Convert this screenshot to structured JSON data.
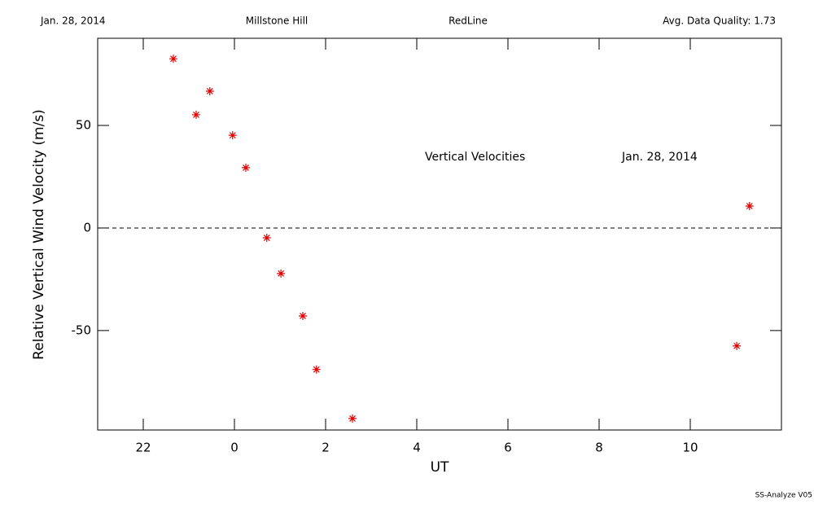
{
  "chart_data": {
    "type": "scatter",
    "header": [
      "Jan. 28, 2014",
      "Millstone Hill",
      "RedLine",
      "Avg. Data Quality: 1.73"
    ],
    "annotations": [
      "Vertical Velocities",
      "Jan. 28, 2014"
    ],
    "footer": "SS-Analyze V05",
    "x_label": "UT",
    "y_label": "Relative Vertical Wind Velocity (m/s)",
    "xlim": [
      -3,
      12
    ],
    "xticks": [
      {
        "value": -2,
        "label": "22"
      },
      0,
      2,
      4,
      6,
      8,
      10
    ],
    "ylim": [
      -98.5,
      92.5
    ],
    "yticks": [
      -50,
      0,
      50
    ],
    "zero_line": true,
    "series": [
      {
        "color": "#e00000",
        "x": [
          -1.34,
          -0.84,
          -0.54,
          -0.04,
          0.25,
          0.71,
          1.02,
          1.5,
          1.8,
          2.59,
          11.02,
          11.3
        ],
        "values": [
          82.5,
          55.2,
          66.7,
          45.2,
          29.4,
          -4.8,
          -22.2,
          -42.9,
          -69,
          -92.9,
          -57.5,
          10.7
        ]
      }
    ]
  }
}
